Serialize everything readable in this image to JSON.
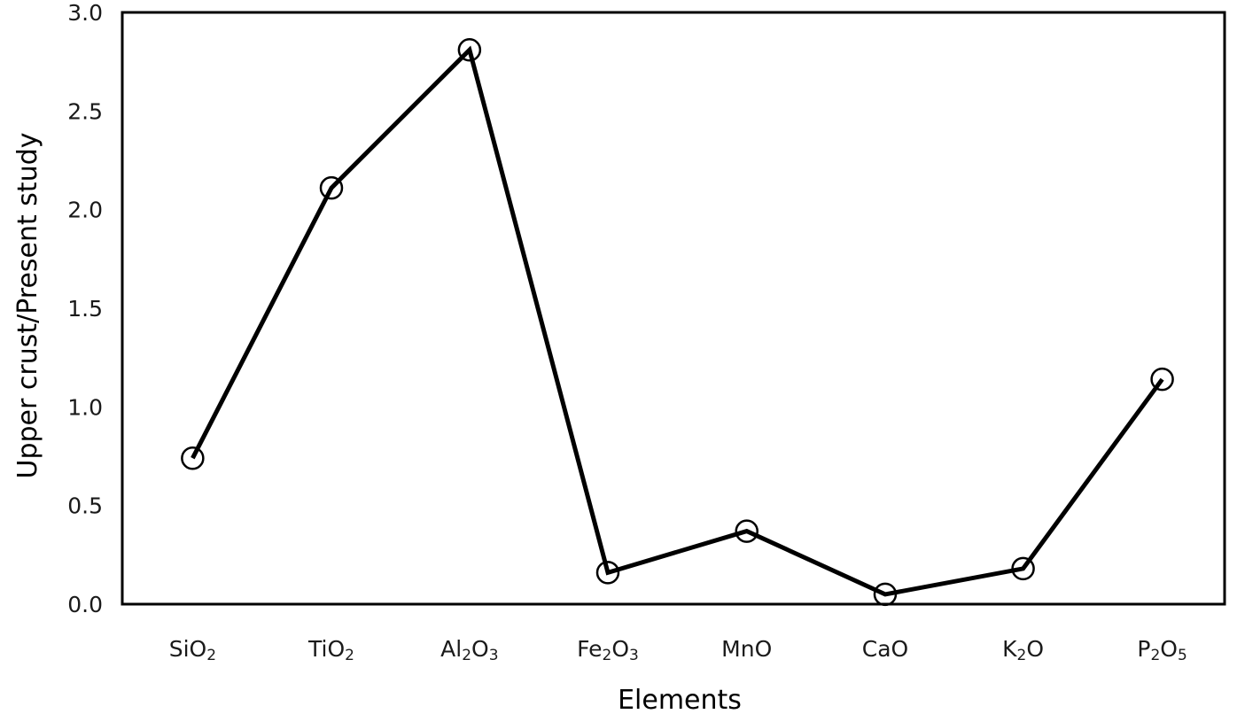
{
  "chart_data": {
    "type": "line",
    "title": "",
    "xlabel": "Elements",
    "ylabel": "Upper crust/Present study",
    "categories": [
      "SiO2",
      "TiO2",
      "Al2O3",
      "Fe2O3",
      "MnO",
      "CaO",
      "K2O",
      "P2O5"
    ],
    "category_labels": [
      [
        {
          "t": "SiO"
        },
        {
          "t": "2",
          "sub": true
        }
      ],
      [
        {
          "t": "TiO"
        },
        {
          "t": "2",
          "sub": true
        }
      ],
      [
        {
          "t": "Al"
        },
        {
          "t": "2",
          "sub": true
        },
        {
          "t": "O"
        },
        {
          "t": "3",
          "sub": true
        }
      ],
      [
        {
          "t": "Fe"
        },
        {
          "t": "2",
          "sub": true
        },
        {
          "t": "O"
        },
        {
          "t": "3",
          "sub": true
        }
      ],
      [
        {
          "t": "MnO"
        }
      ],
      [
        {
          "t": "CaO"
        }
      ],
      [
        {
          "t": "K"
        },
        {
          "t": "2",
          "sub": true
        },
        {
          "t": "O"
        }
      ],
      [
        {
          "t": "P"
        },
        {
          "t": "2",
          "sub": true
        },
        {
          "t": "O"
        },
        {
          "t": "5",
          "sub": true
        }
      ]
    ],
    "series": [
      {
        "values": [
          0.74,
          2.11,
          2.81,
          0.16,
          0.37,
          0.05,
          0.18,
          1.14
        ],
        "color": "#000000",
        "marker": "open-circle"
      }
    ],
    "ylim": [
      0,
      3.0
    ],
    "yticks": [
      "0.0",
      "0.5",
      "1.0",
      "1.5",
      "2.0",
      "2.5",
      "3.0"
    ],
    "grid": false,
    "legend": "none"
  }
}
